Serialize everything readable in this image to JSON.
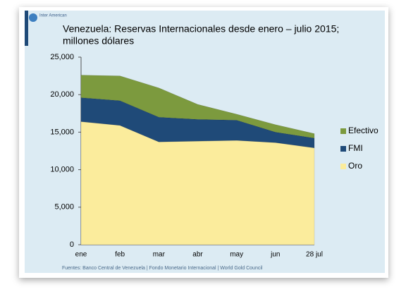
{
  "chart_data": {
    "type": "stacked_area",
    "logo": "Inter American",
    "title": "Venezuela: Reservas Internacionales desde enero – julio  2015;",
    "subtitle": "millones dólares",
    "categories": [
      "ene",
      "feb",
      "mar",
      "abr",
      "may",
      "jun",
      "28 jul"
    ],
    "series": [
      {
        "name": "Oro",
        "color": "#fbec9c",
        "values": [
          16400.0,
          15900.0,
          13700.0,
          13800.0,
          13900.0,
          13600.0,
          12900.0
        ]
      },
      {
        "name": "FMI",
        "color": "#1f4a78",
        "values": [
          3200,
          3300,
          3300,
          2900,
          2700,
          1400,
          1300
        ]
      },
      {
        "name": "Efectivo",
        "color": "#7c9a3e",
        "values": [
          3000,
          3300,
          3900,
          2000,
          800,
          1000,
          600
        ]
      }
    ],
    "ylim": [
      0,
      25000
    ],
    "yticks": [
      0,
      {
        "value": 5000,
        "label": "5,000"
      },
      {
        "value": 10000,
        "label": "10,000"
      },
      {
        "value": 15000,
        "label": "15,000"
      },
      {
        "value": 20000,
        "label": "20,000"
      },
      {
        "value": 25000,
        "label": "25,000"
      }
    ],
    "legend": "right",
    "source": "Fuentes: Banco Central de Venezuela  | Fondo Monetario Internacional | World Gold Council"
  }
}
